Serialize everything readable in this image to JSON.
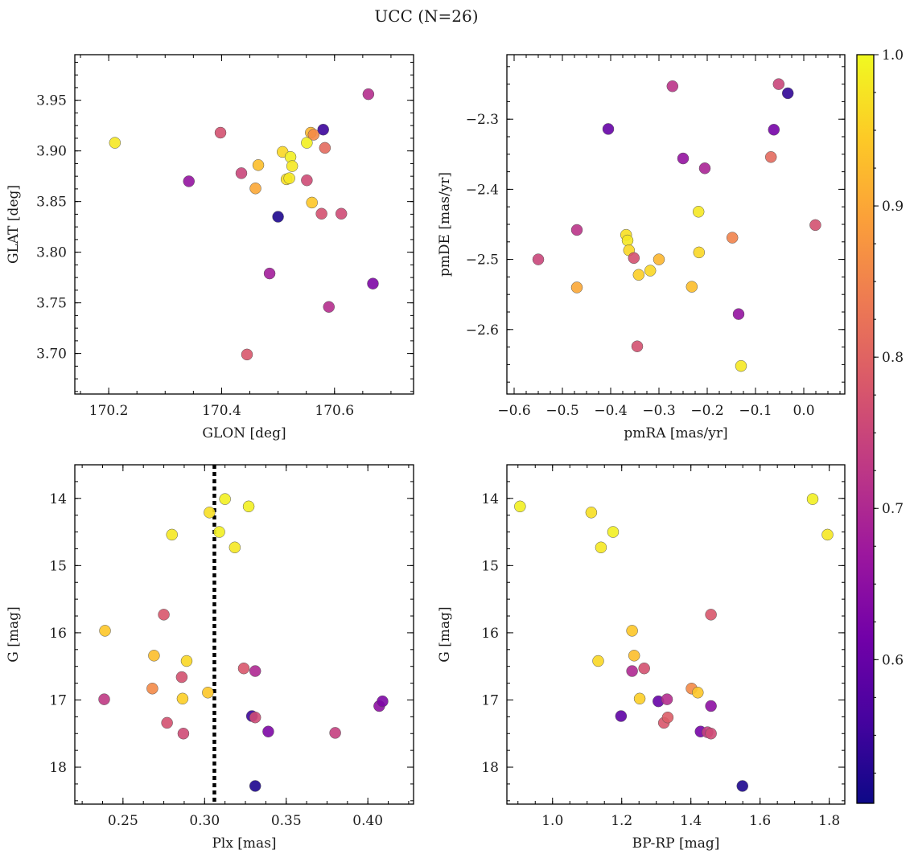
{
  "title": "UCC (N=26)",
  "colors": {
    "colormap": [
      "#0d0887",
      "#46039f",
      "#7201a8",
      "#9c179e",
      "#bd3786",
      "#d8576b",
      "#ed7953",
      "#fb9f3a",
      "#fdca26",
      "#f0f921"
    ],
    "reference_line": "#000000"
  },
  "chart_data": [
    {
      "type": "scatter",
      "xlabel": "GLON [deg]",
      "ylabel": "GLAT [deg]",
      "xlim": [
        170.14,
        170.74
      ],
      "ylim": [
        3.66,
        3.995
      ],
      "x_inverted": false,
      "y_inverted": false,
      "xticks": [
        170.2,
        170.4,
        170.6
      ],
      "yticks": [
        3.7,
        3.75,
        3.8,
        3.85,
        3.9,
        3.95
      ],
      "x_decimals": 1,
      "y_decimals": 2,
      "points": [
        {
          "x": 170.211,
          "y": 3.908,
          "c": 0.98
        },
        {
          "x": 170.342,
          "y": 3.87,
          "c": 0.66
        },
        {
          "x": 170.398,
          "y": 3.918,
          "c": 0.77
        },
        {
          "x": 170.435,
          "y": 3.878,
          "c": 0.75
        },
        {
          "x": 170.445,
          "y": 3.699,
          "c": 0.78
        },
        {
          "x": 170.46,
          "y": 3.863,
          "c": 0.9
        },
        {
          "x": 170.465,
          "y": 3.886,
          "c": 0.93
        },
        {
          "x": 170.485,
          "y": 3.779,
          "c": 0.68
        },
        {
          "x": 170.5,
          "y": 3.835,
          "c": 0.52
        },
        {
          "x": 170.508,
          "y": 3.899,
          "c": 0.96
        },
        {
          "x": 170.515,
          "y": 3.872,
          "c": 0.97
        },
        {
          "x": 170.52,
          "y": 3.873,
          "c": 0.98
        },
        {
          "x": 170.522,
          "y": 3.894,
          "c": 0.99
        },
        {
          "x": 170.525,
          "y": 3.885,
          "c": 0.98
        },
        {
          "x": 170.551,
          "y": 3.908,
          "c": 0.99
        },
        {
          "x": 170.551,
          "y": 3.871,
          "c": 0.76
        },
        {
          "x": 170.558,
          "y": 3.918,
          "c": 0.92
        },
        {
          "x": 170.56,
          "y": 3.849,
          "c": 0.94
        },
        {
          "x": 170.563,
          "y": 3.916,
          "c": 0.86
        },
        {
          "x": 170.577,
          "y": 3.838,
          "c": 0.77
        },
        {
          "x": 170.58,
          "y": 3.921,
          "c": 0.55
        },
        {
          "x": 170.583,
          "y": 3.903,
          "c": 0.81
        },
        {
          "x": 170.59,
          "y": 3.746,
          "c": 0.71
        },
        {
          "x": 170.612,
          "y": 3.838,
          "c": 0.76
        },
        {
          "x": 170.66,
          "y": 3.956,
          "c": 0.71
        },
        {
          "x": 170.668,
          "y": 3.769,
          "c": 0.63
        }
      ]
    },
    {
      "type": "scatter",
      "xlabel": "pmRA [mas/yr]",
      "ylabel": "pmDE [mas/yr]",
      "xlim": [
        -0.615,
        0.085
      ],
      "ylim": [
        -2.692,
        -2.208
      ],
      "x_inverted": false,
      "y_inverted": false,
      "xticks": [
        -0.6,
        -0.5,
        -0.4,
        -0.3,
        -0.2,
        -0.1,
        0.0
      ],
      "yticks": [
        -2.6,
        -2.5,
        -2.4,
        -2.3
      ],
      "x_decimals": 1,
      "y_decimals": 1,
      "points": [
        {
          "x": -0.55,
          "y": -2.5,
          "c": 0.75
        },
        {
          "x": -0.47,
          "y": -2.458,
          "c": 0.72
        },
        {
          "x": -0.47,
          "y": -2.54,
          "c": 0.9
        },
        {
          "x": -0.405,
          "y": -2.314,
          "c": 0.6
        },
        {
          "x": -0.368,
          "y": -2.465,
          "c": 0.97
        },
        {
          "x": -0.365,
          "y": -2.473,
          "c": 0.98
        },
        {
          "x": -0.362,
          "y": -2.487,
          "c": 0.96
        },
        {
          "x": -0.352,
          "y": -2.498,
          "c": 0.77
        },
        {
          "x": -0.345,
          "y": -2.624,
          "c": 0.77
        },
        {
          "x": -0.342,
          "y": -2.522,
          "c": 0.95
        },
        {
          "x": -0.318,
          "y": -2.516,
          "c": 0.96
        },
        {
          "x": -0.3,
          "y": -2.5,
          "c": 0.92
        },
        {
          "x": -0.272,
          "y": -2.253,
          "c": 0.72
        },
        {
          "x": -0.25,
          "y": -2.356,
          "c": 0.66
        },
        {
          "x": -0.232,
          "y": -2.539,
          "c": 0.93
        },
        {
          "x": -0.218,
          "y": -2.432,
          "c": 0.98
        },
        {
          "x": -0.217,
          "y": -2.49,
          "c": 0.96
        },
        {
          "x": -0.205,
          "y": -2.37,
          "c": 0.69
        },
        {
          "x": -0.148,
          "y": -2.469,
          "c": 0.85
        },
        {
          "x": -0.135,
          "y": -2.578,
          "c": 0.66
        },
        {
          "x": -0.13,
          "y": -2.652,
          "c": 0.98
        },
        {
          "x": -0.068,
          "y": -2.354,
          "c": 0.81
        },
        {
          "x": -0.062,
          "y": -2.315,
          "c": 0.62
        },
        {
          "x": -0.052,
          "y": -2.25,
          "c": 0.75
        },
        {
          "x": -0.033,
          "y": -2.263,
          "c": 0.54
        },
        {
          "x": 0.024,
          "y": -2.451,
          "c": 0.77
        }
      ]
    },
    {
      "type": "scatter",
      "xlabel": "Plx [mas]",
      "ylabel": "G [mag]",
      "xlim": [
        0.2205,
        0.428
      ],
      "ylim": [
        18.55,
        13.5
      ],
      "x_inverted": false,
      "y_inverted": true,
      "xticks": [
        0.25,
        0.3,
        0.35,
        0.4
      ],
      "yticks": [
        14,
        15,
        16,
        17,
        18
      ],
      "x_decimals": 2,
      "y_decimals": 0,
      "reference_line_x": 0.306,
      "points": [
        {
          "x": 0.239,
          "y": 15.97,
          "c": 0.94
        },
        {
          "x": 0.2385,
          "y": 16.99,
          "c": 0.73
        },
        {
          "x": 0.268,
          "y": 16.83,
          "c": 0.86
        },
        {
          "x": 0.269,
          "y": 16.34,
          "c": 0.93
        },
        {
          "x": 0.275,
          "y": 15.73,
          "c": 0.78
        },
        {
          "x": 0.277,
          "y": 17.34,
          "c": 0.77
        },
        {
          "x": 0.28,
          "y": 14.54,
          "c": 0.98
        },
        {
          "x": 0.286,
          "y": 16.66,
          "c": 0.77
        },
        {
          "x": 0.2865,
          "y": 16.98,
          "c": 0.95
        },
        {
          "x": 0.287,
          "y": 17.5,
          "c": 0.76
        },
        {
          "x": 0.289,
          "y": 16.42,
          "c": 0.96
        },
        {
          "x": 0.302,
          "y": 16.89,
          "c": 0.94
        },
        {
          "x": 0.303,
          "y": 14.21,
          "c": 0.97
        },
        {
          "x": 0.309,
          "y": 14.5,
          "c": 0.99
        },
        {
          "x": 0.3125,
          "y": 14.01,
          "c": 0.99
        },
        {
          "x": 0.3185,
          "y": 14.73,
          "c": 0.98
        },
        {
          "x": 0.324,
          "y": 16.53,
          "c": 0.78
        },
        {
          "x": 0.327,
          "y": 14.12,
          "c": 0.99
        },
        {
          "x": 0.329,
          "y": 17.24,
          "c": 0.55
        },
        {
          "x": 0.331,
          "y": 16.57,
          "c": 0.7
        },
        {
          "x": 0.331,
          "y": 17.26,
          "c": 0.76
        },
        {
          "x": 0.331,
          "y": 18.28,
          "c": 0.52
        },
        {
          "x": 0.339,
          "y": 17.47,
          "c": 0.63
        },
        {
          "x": 0.38,
          "y": 17.49,
          "c": 0.74
        },
        {
          "x": 0.407,
          "y": 17.09,
          "c": 0.65
        },
        {
          "x": 0.409,
          "y": 17.02,
          "c": 0.63
        }
      ]
    },
    {
      "type": "scatter",
      "xlabel": "BP-RP [mag]",
      "ylabel": "G [mag]",
      "xlim": [
        0.868,
        1.845
      ],
      "ylim": [
        18.55,
        13.5
      ],
      "x_inverted": false,
      "y_inverted": true,
      "xticks": [
        1.0,
        1.2,
        1.4,
        1.6,
        1.8
      ],
      "yticks": [
        14,
        15,
        16,
        17,
        18
      ],
      "x_decimals": 1,
      "y_decimals": 0,
      "points": [
        {
          "x": 0.906,
          "y": 14.12,
          "c": 0.99
        },
        {
          "x": 1.112,
          "y": 14.21,
          "c": 0.97
        },
        {
          "x": 1.132,
          "y": 16.42,
          "c": 0.96
        },
        {
          "x": 1.14,
          "y": 14.73,
          "c": 0.98
        },
        {
          "x": 1.175,
          "y": 14.5,
          "c": 0.99
        },
        {
          "x": 1.198,
          "y": 17.24,
          "c": 0.59
        },
        {
          "x": 1.23,
          "y": 15.97,
          "c": 0.94
        },
        {
          "x": 1.23,
          "y": 16.57,
          "c": 0.7
        },
        {
          "x": 1.236,
          "y": 16.34,
          "c": 0.93
        },
        {
          "x": 1.252,
          "y": 16.98,
          "c": 0.95
        },
        {
          "x": 1.265,
          "y": 16.53,
          "c": 0.77
        },
        {
          "x": 1.306,
          "y": 17.02,
          "c": 0.6
        },
        {
          "x": 1.322,
          "y": 17.34,
          "c": 0.78
        },
        {
          "x": 1.331,
          "y": 16.99,
          "c": 0.71
        },
        {
          "x": 1.333,
          "y": 17.26,
          "c": 0.79
        },
        {
          "x": 1.402,
          "y": 16.83,
          "c": 0.86
        },
        {
          "x": 1.42,
          "y": 16.89,
          "c": 0.94
        },
        {
          "x": 1.428,
          "y": 17.47,
          "c": 0.62
        },
        {
          "x": 1.448,
          "y": 17.48,
          "c": 0.74
        },
        {
          "x": 1.458,
          "y": 17.5,
          "c": 0.76
        },
        {
          "x": 1.458,
          "y": 15.73,
          "c": 0.78
        },
        {
          "x": 1.458,
          "y": 17.09,
          "c": 0.65
        },
        {
          "x": 1.549,
          "y": 18.28,
          "c": 0.52
        },
        {
          "x": 1.752,
          "y": 14.01,
          "c": 0.99
        },
        {
          "x": 1.795,
          "y": 14.54,
          "c": 0.98
        }
      ]
    }
  ],
  "colorbar": {
    "vmin": 0.505,
    "vmax": 1.0,
    "ticks": [
      0.6,
      0.7,
      0.8,
      0.9,
      1.0
    ],
    "tick_labels": [
      "0.6",
      "0.7",
      "0.8",
      "0.9",
      "1.0"
    ]
  }
}
